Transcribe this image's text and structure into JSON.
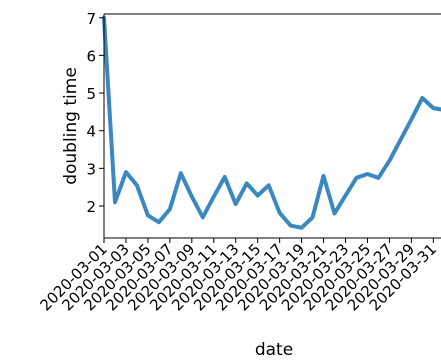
{
  "chart_data": {
    "type": "line",
    "title": "",
    "xlabel": "date",
    "ylabel": "doubling time",
    "x": [
      "2020-03-01",
      "2020-03-02",
      "2020-03-03",
      "2020-03-04",
      "2020-03-05",
      "2020-03-06",
      "2020-03-07",
      "2020-03-08",
      "2020-03-09",
      "2020-03-10",
      "2020-03-11",
      "2020-03-12",
      "2020-03-13",
      "2020-03-14",
      "2020-03-15",
      "2020-03-16",
      "2020-03-17",
      "2020-03-18",
      "2020-03-19",
      "2020-03-20",
      "2020-03-21",
      "2020-03-22",
      "2020-03-23",
      "2020-03-24",
      "2020-03-25",
      "2020-03-26",
      "2020-03-27",
      "2020-03-28",
      "2020-03-29",
      "2020-03-30",
      "2020-03-31",
      "2020-04-01"
    ],
    "x_tick_labels": [
      "2020-03-01",
      "2020-03-03",
      "2020-03-05",
      "2020-03-07",
      "2020-03-09",
      "2020-03-11",
      "2020-03-13",
      "2020-03-15",
      "2020-03-17",
      "2020-03-19",
      "2020-03-21",
      "2020-03-23",
      "2020-03-25",
      "2020-03-27",
      "2020-03-29",
      "2020-03-31"
    ],
    "y_ticks": [
      2,
      3,
      4,
      5,
      6,
      7
    ],
    "series": [
      {
        "values": [
          7.0,
          2.1,
          2.9,
          2.55,
          1.75,
          1.57,
          1.92,
          2.87,
          2.25,
          1.7,
          2.25,
          2.77,
          2.05,
          2.6,
          2.28,
          2.55,
          1.82,
          1.48,
          1.42,
          1.7,
          2.8,
          1.8,
          2.28,
          2.75,
          2.85,
          2.75,
          3.2,
          3.75,
          4.3,
          4.87,
          4.6,
          4.55
        ],
        "color": "#3a88bf"
      }
    ],
    "ylim": [
      1.15,
      7.1
    ],
    "grid": false
  }
}
